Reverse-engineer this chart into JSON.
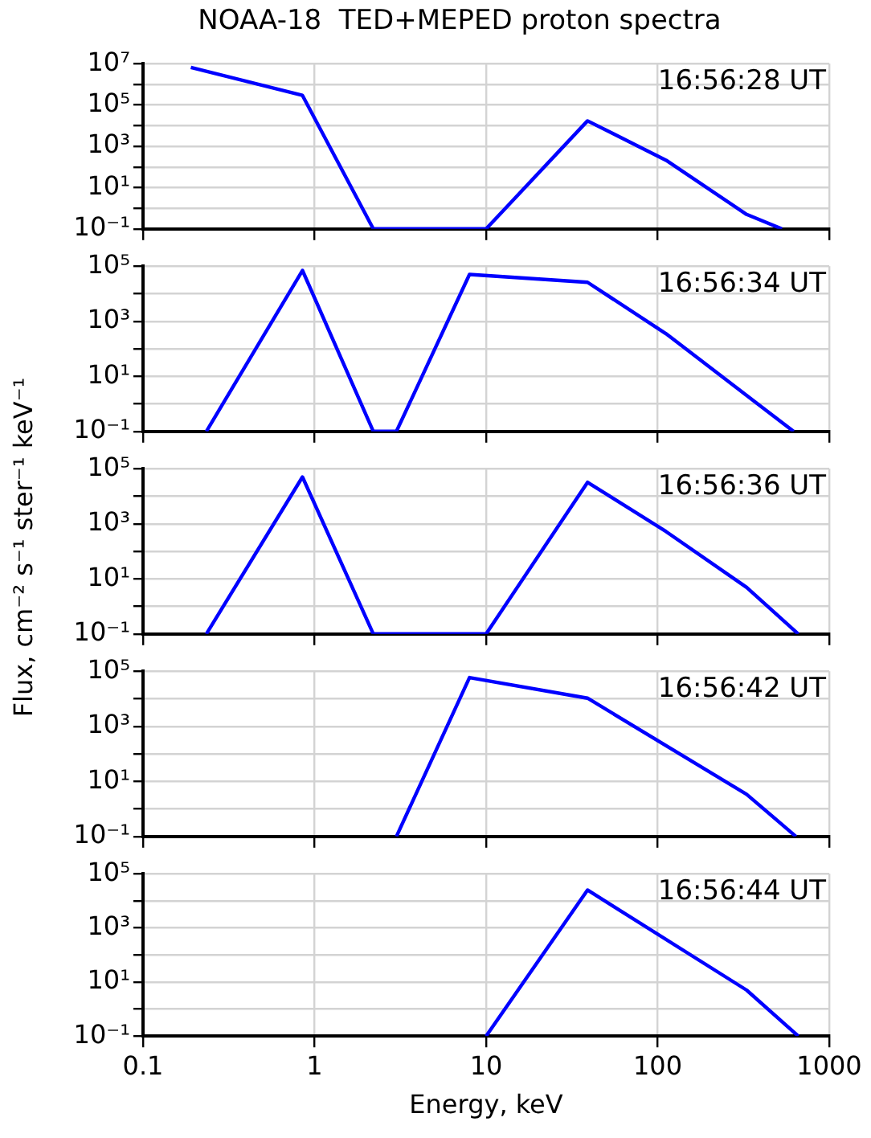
{
  "chart_data": [
    {
      "type": "line",
      "title": "NOAA-18  TED+MEPED proton spectra",
      "ylabel": "Flux, cm⁻² s⁻¹ ster⁻¹ keV⁻¹",
      "annotations": [
        "16:56:28 UT"
      ],
      "x": [
        0.19,
        0.85,
        2.2,
        10,
        39,
        112,
        330,
        530
      ],
      "values": [
        6600000,
        290000,
        0.1,
        0.1,
        17000,
        210,
        0.5,
        0.1
      ],
      "color": "#0000ff",
      "log": "xy",
      "xlim": [
        0.1,
        1000
      ],
      "xticks": [
        0.1,
        1,
        10,
        100,
        1000
      ],
      "ylim": [
        0.1,
        10000000
      ],
      "yticks": [
        {
          "value": 0.1,
          "label": "10⁻¹"
        },
        {
          "value": 1,
          "label": null
        },
        {
          "value": 10,
          "label": "10¹"
        },
        {
          "value": 100,
          "label": null
        },
        {
          "value": 1000,
          "label": "10³"
        },
        {
          "value": 10000,
          "label": null
        },
        {
          "value": 100000,
          "label": "10⁵"
        },
        {
          "value": 1000000,
          "label": null
        },
        {
          "value": 10000000,
          "label": "10⁷"
        }
      ],
      "grid": true,
      "tick_labels": "y",
      "marker": "none"
    },
    {
      "type": "line",
      "annotations": [
        "16:56:34 UT"
      ],
      "x": [
        0.234,
        0.85,
        2.2,
        3.0,
        8.0,
        39,
        112,
        620
      ],
      "values": [
        0.1,
        70000,
        0.1,
        0.1,
        50000,
        26000,
        350,
        0.1
      ],
      "color": "#0000ff",
      "log": "xy",
      "xlim": [
        0.1,
        1000
      ],
      "xticks": [
        0.1,
        1,
        10,
        100,
        1000
      ],
      "ylim": [
        0.1,
        100000
      ],
      "yticks": [
        {
          "value": 0.1,
          "label": "10⁻¹"
        },
        {
          "value": 1,
          "label": null
        },
        {
          "value": 10,
          "label": "10¹"
        },
        {
          "value": 100,
          "label": null
        },
        {
          "value": 1000,
          "label": "10³"
        },
        {
          "value": 10000,
          "label": null
        },
        {
          "value": 100000,
          "label": "10⁵"
        }
      ],
      "grid": true,
      "tick_labels": "y",
      "marker": "none"
    },
    {
      "type": "line",
      "annotations": [
        "16:56:36 UT"
      ],
      "x": [
        0.234,
        0.85,
        2.2,
        10,
        39,
        112,
        330,
        660
      ],
      "values": [
        0.1,
        50000,
        0.1,
        0.1,
        32000,
        520,
        4.9,
        0.1
      ],
      "color": "#0000ff",
      "log": "xy",
      "xlim": [
        0.1,
        1000
      ],
      "xticks": [
        0.1,
        1,
        10,
        100,
        1000
      ],
      "ylim": [
        0.1,
        100000
      ],
      "yticks": [
        {
          "value": 0.1,
          "label": "10⁻¹"
        },
        {
          "value": 1,
          "label": null
        },
        {
          "value": 10,
          "label": "10¹"
        },
        {
          "value": 100,
          "label": null
        },
        {
          "value": 1000,
          "label": "10³"
        },
        {
          "value": 10000,
          "label": null
        },
        {
          "value": 100000,
          "label": "10⁵"
        }
      ],
      "grid": true,
      "tick_labels": "y",
      "marker": "none"
    },
    {
      "type": "line",
      "annotations": [
        "16:56:42 UT"
      ],
      "x": [
        3.0,
        8.0,
        39,
        330,
        640
      ],
      "values": [
        0.1,
        59000,
        10500,
        3.4,
        0.1
      ],
      "color": "#0000ff",
      "log": "xy",
      "xlim": [
        0.1,
        1000
      ],
      "xticks": [
        0.1,
        1,
        10,
        100,
        1000
      ],
      "ylim": [
        0.1,
        100000
      ],
      "yticks": [
        {
          "value": 0.1,
          "label": "10⁻¹"
        },
        {
          "value": 1,
          "label": null
        },
        {
          "value": 10,
          "label": "10¹"
        },
        {
          "value": 100,
          "label": null
        },
        {
          "value": 1000,
          "label": "10³"
        },
        {
          "value": 10000,
          "label": null
        },
        {
          "value": 100000,
          "label": "10⁵"
        }
      ],
      "grid": true,
      "tick_labels": "y",
      "marker": "none"
    },
    {
      "type": "line",
      "xlabel": "Energy, keV",
      "annotations": [
        "16:56:44 UT"
      ],
      "x": [
        10,
        39,
        330,
        660
      ],
      "values": [
        0.1,
        25000,
        5,
        0.1
      ],
      "color": "#0000ff",
      "log": "xy",
      "xlim": [
        0.1,
        1000
      ],
      "xticks": [
        0.1,
        1,
        10,
        100,
        1000
      ],
      "ylim": [
        0.1,
        100000
      ],
      "yticks": [
        {
          "value": 0.1,
          "label": "10⁻¹"
        },
        {
          "value": 1,
          "label": null
        },
        {
          "value": 10,
          "label": "10¹"
        },
        {
          "value": 100,
          "label": null
        },
        {
          "value": 1000,
          "label": "10³"
        },
        {
          "value": 10000,
          "label": null
        },
        {
          "value": 100000,
          "label": "10⁵"
        }
      ],
      "grid": true,
      "marker": "none"
    }
  ]
}
